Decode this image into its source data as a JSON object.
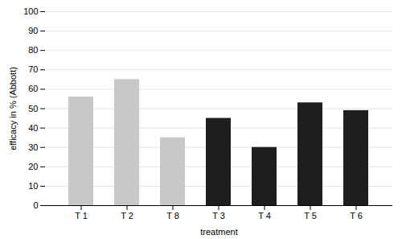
{
  "chart_data": {
    "type": "bar",
    "categories": [
      "T 1",
      "T 2",
      "T 8",
      "T 3",
      "T 4",
      "T 5",
      "T 6"
    ],
    "values": [
      56,
      65,
      35,
      45,
      30,
      53,
      49
    ],
    "colors": [
      "#c8c8c8",
      "#c8c8c8",
      "#c8c8c8",
      "#1e1e1e",
      "#1e1e1e",
      "#1e1e1e",
      "#1e1e1e"
    ],
    "xlabel": "treatment",
    "ylabel": "efficacy in % (Abbott)",
    "ylim": [
      0,
      100
    ],
    "yticks": [
      0,
      10,
      20,
      30,
      40,
      50,
      60,
      70,
      80,
      90,
      100
    ],
    "grid": true
  }
}
